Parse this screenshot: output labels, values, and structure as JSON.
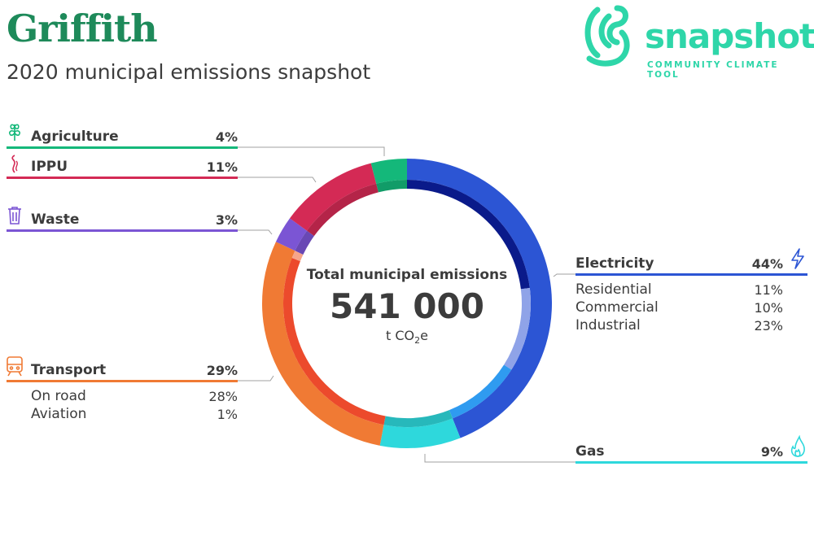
{
  "header": {
    "city": "Griffith",
    "subtitle": "2020 municipal emissions snapshot"
  },
  "logo": {
    "word": "snapshot",
    "tagline": "COMMUNITY CLIMATE TOOL",
    "color": "#2ed6a9"
  },
  "center": {
    "title": "Total municipal emissions",
    "value": "541 000",
    "unit_prefix": "t CO",
    "unit_sub": "2",
    "unit_suffix": "e"
  },
  "chart_data": {
    "type": "pie",
    "title": "",
    "total": 541000,
    "sectors": [
      {
        "name": "Electricity",
        "percent": 44,
        "color": "#2c55d4",
        "icon": "lightning-icon",
        "subcategories": [
          {
            "name": "Residential",
            "percent": 11,
            "color": "#8fa3e8"
          },
          {
            "name": "Commercial",
            "percent": 10,
            "color": "#2f9bf0"
          },
          {
            "name": "Industrial",
            "percent": 23,
            "color": "#0a1a8a"
          }
        ]
      },
      {
        "name": "Gas",
        "percent": 9,
        "color": "#2ed8dc",
        "icon": "flame-icon",
        "subcategories": []
      },
      {
        "name": "Transport",
        "percent": 29,
        "color": "#f07a34",
        "icon": "train-icon",
        "subcategories": [
          {
            "name": "On road",
            "percent": 28,
            "color": "#ec4a2c"
          },
          {
            "name": "Aviation",
            "percent": 1,
            "color": "#f6a58a"
          }
        ]
      },
      {
        "name": "Waste",
        "percent": 3,
        "color": "#7b55d4",
        "icon": "trash-icon",
        "subcategories": []
      },
      {
        "name": "IPPU",
        "percent": 11,
        "color": "#d42a55",
        "icon": "smoke-icon",
        "subcategories": []
      },
      {
        "name": "Agriculture",
        "percent": 4,
        "color": "#14b87a",
        "icon": "leaf-icon",
        "subcategories": []
      }
    ]
  },
  "labels": {
    "agriculture": {
      "name": "Agriculture",
      "pct": "4%",
      "color": "#14b87a"
    },
    "ippu": {
      "name": "IPPU",
      "pct": "11%",
      "color": "#d42a55"
    },
    "waste": {
      "name": "Waste",
      "pct": "3%",
      "color": "#7b55d4"
    },
    "transport": {
      "name": "Transport",
      "pct": "29%",
      "color": "#f07a34",
      "subs": [
        {
          "name": "On road",
          "pct": "28%"
        },
        {
          "name": "Aviation",
          "pct": "1%"
        }
      ]
    },
    "electricity": {
      "name": "Electricity",
      "pct": "44%",
      "color": "#2c55d4",
      "subs": [
        {
          "name": "Residential",
          "pct": "11%"
        },
        {
          "name": "Commercial",
          "pct": "10%"
        },
        {
          "name": "Industrial",
          "pct": "23%"
        }
      ]
    },
    "gas": {
      "name": "Gas",
      "pct": "9%",
      "color": "#2ed8dc"
    }
  }
}
